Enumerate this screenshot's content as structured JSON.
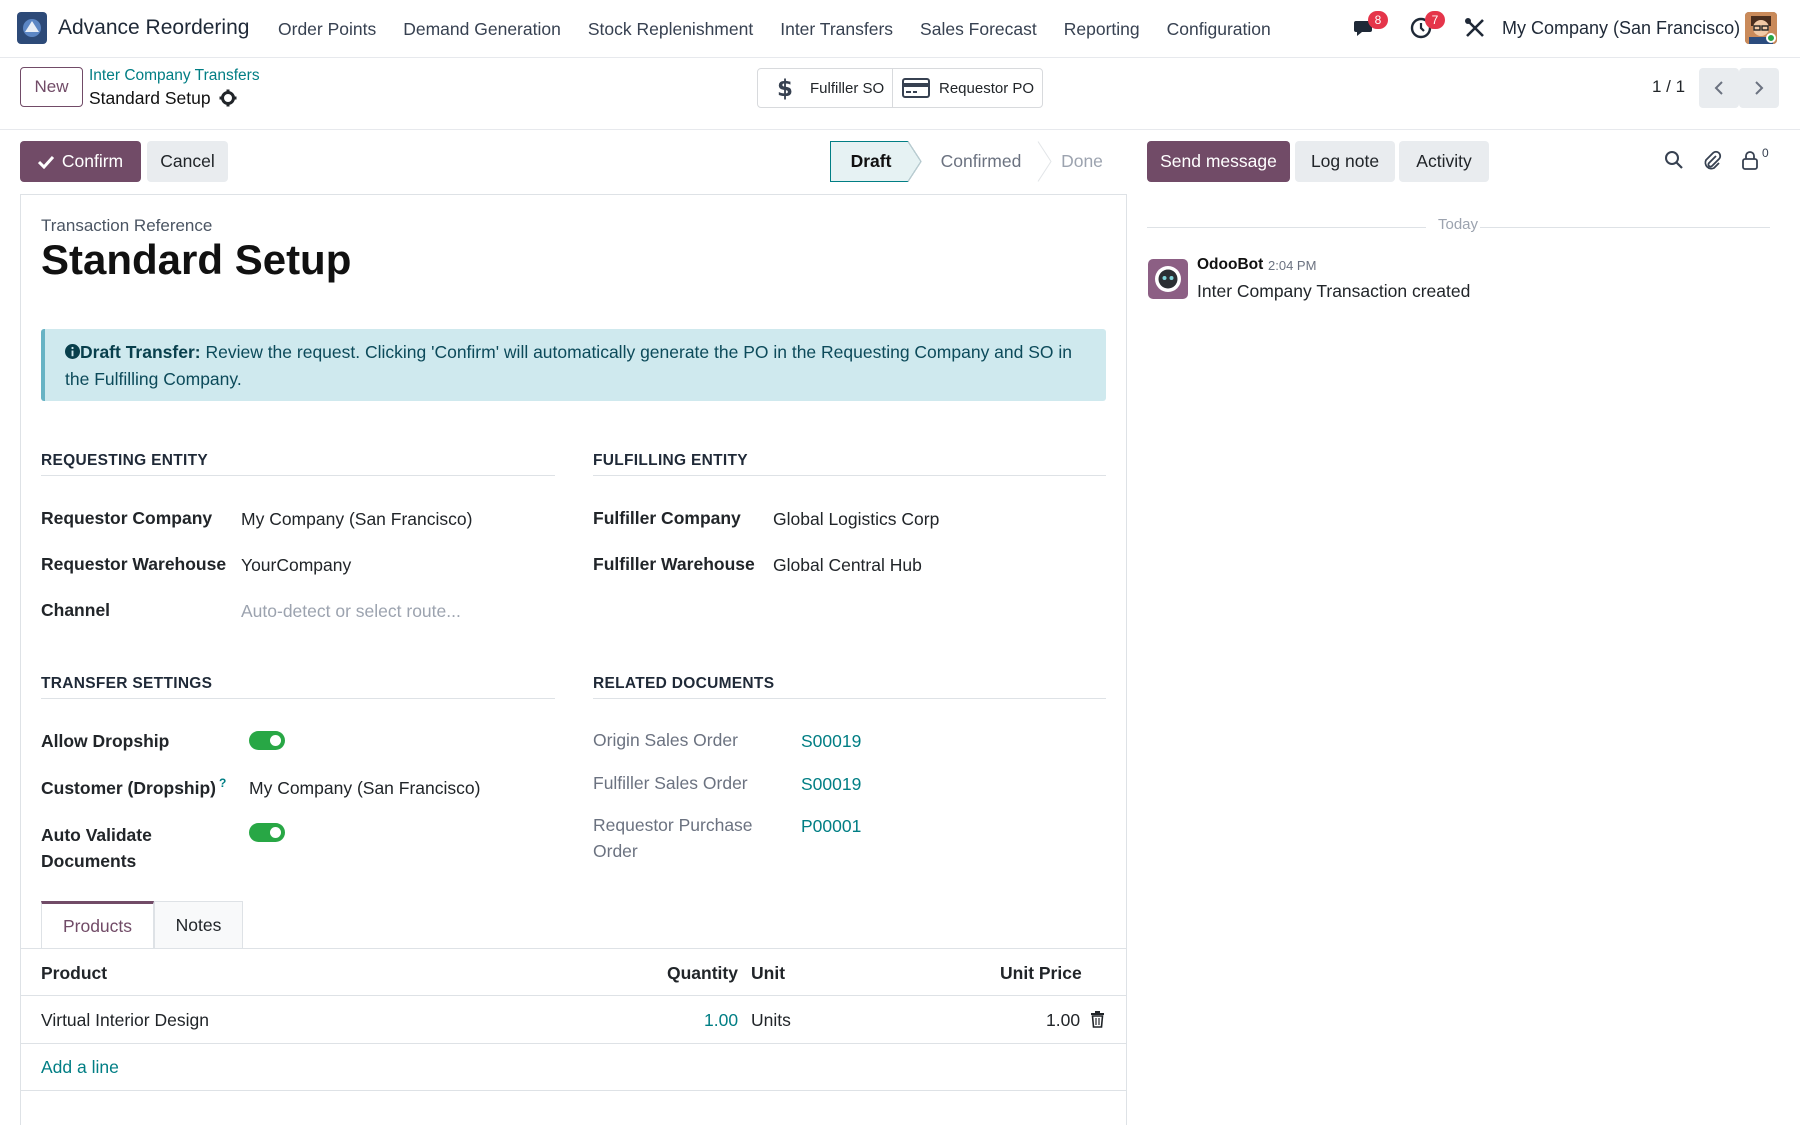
{
  "navbar": {
    "app_name": "Advance Reordering",
    "menu": [
      "Order Points",
      "Demand Generation",
      "Stock Replenishment",
      "Inter Transfers",
      "Sales Forecast",
      "Reporting",
      "Configuration"
    ],
    "messages_badge": "8",
    "activities_badge": "7",
    "company": "My Company (San Francisco)"
  },
  "control": {
    "new_label": "New",
    "breadcrumb_parent": "Inter Company Transfers",
    "breadcrumb_current": "Standard Setup",
    "smart_fulfiller_so": "Fulfiller SO",
    "smart_requestor_po": "Requestor PO",
    "pager": "1 / 1"
  },
  "actions": {
    "confirm": "Confirm",
    "cancel": "Cancel"
  },
  "status": {
    "stages": [
      "Draft",
      "Confirmed",
      "Done"
    ],
    "active": "Draft"
  },
  "form": {
    "ref_label": "Transaction Reference",
    "title": "Standard Setup",
    "alert_bold": "Draft Transfer:",
    "alert_text": " Review the request. Clicking 'Confirm' will automatically generate the PO in the Requesting Company and SO in the Fulfilling Company.",
    "requesting": {
      "heading": "REQUESTING ENTITY",
      "company_label": "Requestor Company",
      "company": "My Company (San Francisco)",
      "warehouse_label": "Requestor Warehouse",
      "warehouse": "YourCompany",
      "channel_label": "Channel",
      "channel_placeholder": "Auto-detect or select route..."
    },
    "fulfilling": {
      "heading": "FULFILLING ENTITY",
      "company_label": "Fulfiller Company",
      "company": "Global Logistics Corp",
      "warehouse_label": "Fulfiller Warehouse",
      "warehouse": "Global Central Hub"
    },
    "transfer_settings": {
      "heading": "TRANSFER SETTINGS",
      "dropship_label": "Allow Dropship",
      "dropship": true,
      "customer_label": "Customer (Dropship)",
      "customer_help": "?",
      "customer": "My Company (San Francisco)",
      "auto_validate_label_1": "Auto Validate",
      "auto_validate_label_2": "Documents",
      "auto_validate": true
    },
    "related": {
      "heading": "RELATED DOCUMENTS",
      "origin_so_label": "Origin Sales Order",
      "origin_so": "S00019",
      "fulfiller_so_label": "Fulfiller Sales Order",
      "fulfiller_so": "S00019",
      "requestor_po_label_1": "Requestor Purchase",
      "requestor_po_label_2": "Order",
      "requestor_po": "P00001"
    },
    "tabs": [
      "Products",
      "Notes"
    ],
    "lines": {
      "headers": [
        "Product",
        "Quantity",
        "Unit",
        "Unit Price"
      ],
      "rows": [
        {
          "product": "Virtual Interior Design",
          "quantity": "1.00",
          "unit": "Units",
          "price": "1.00"
        }
      ],
      "add_line": "Add a line"
    }
  },
  "chatter": {
    "send_message": "Send message",
    "log_note": "Log note",
    "activity": "Activity",
    "followers_count": "0",
    "date_separator": "Today",
    "message": {
      "author": "OdooBot",
      "time": "2:04 PM",
      "body": "Inter Company Transaction created"
    }
  },
  "colors": {
    "brand": "#714b67",
    "link": "#017e84",
    "toggle_on": "#28a745",
    "badge": "#e5354a",
    "alert_bg": "#cfe9ee"
  }
}
